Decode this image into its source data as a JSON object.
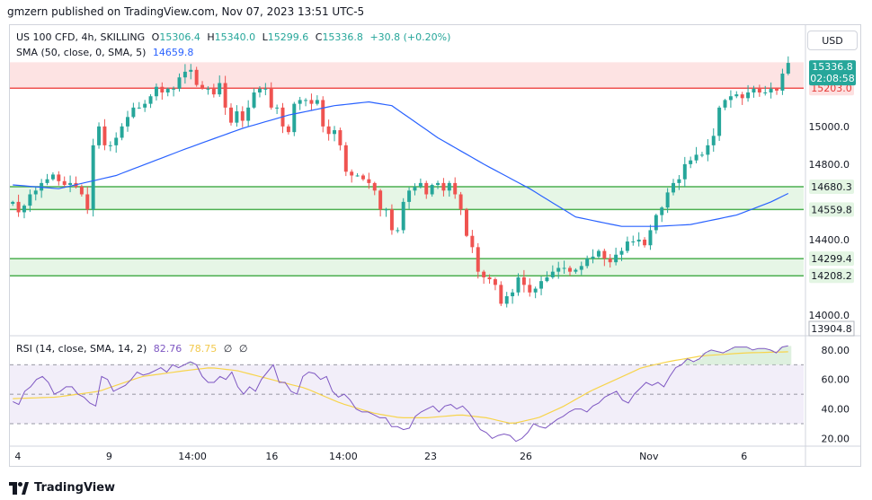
{
  "header": {
    "publisher_line": "gmzern published on TradingView.com, Nov 07, 2023 13:51 UTC-5"
  },
  "legend": {
    "symbol": "US 100 CFD, 4h, SKILLING",
    "open_label": "O",
    "open_value": "15306.4",
    "high_label": "H",
    "high_value": "15340.0",
    "low_label": "L",
    "low_value": "15299.6",
    "close_label": "C",
    "close_value": "15336.8",
    "change": "+30.8 (+0.20%)",
    "sma_label": "SMA (50, close, 0, SMA, 5)",
    "sma_value": "14659.8",
    "rsi_label": "RSI (14, close, SMA, 14, 2)",
    "rsi_value": "82.76",
    "rsi_ma_value": "78.75",
    "rsi_extra1": "∅",
    "rsi_extra2": "∅"
  },
  "currency_button": "USD",
  "footer": {
    "brand": "TradingView"
  },
  "colors": {
    "up": "#26a69a",
    "down": "#ef5350",
    "sma": "#2962ff",
    "rsi": "#7e57c2",
    "rsi_ma": "#f7d44c",
    "zone_red": "#fde0e0",
    "zone_green": "#e3f5e3",
    "line_red": "#f28b82",
    "line_green": "#66bb6a"
  },
  "chart_data": [
    {
      "type": "candlestick",
      "title": "US 100 CFD, 4h, SKILLING",
      "ylim": [
        13900,
        15380
      ],
      "y_ticks": [
        14000,
        14400,
        14800,
        15000
      ],
      "x_tick_labels": [
        "4",
        "9",
        "14:00",
        "16",
        "14:00",
        "23",
        "26",
        "Nov",
        "6"
      ],
      "levels": [
        {
          "value": 15203.0,
          "label": "15203.0",
          "color": "#ef5350"
        },
        {
          "value": 14680.3,
          "label": "14680.3",
          "color": "#4caf50"
        },
        {
          "value": 14559.8,
          "label": "14559.8",
          "color": "#4caf50"
        },
        {
          "value": 14299.4,
          "label": "14299.4",
          "color": "#4caf50"
        },
        {
          "value": 14208.2,
          "label": "14208.2",
          "color": "#4caf50"
        }
      ],
      "zones": [
        {
          "from": 15203.0,
          "to": 15340.0,
          "color": "red"
        },
        {
          "from": 14559.8,
          "to": 14680.3,
          "color": "green"
        },
        {
          "from": 14208.2,
          "to": 14299.4,
          "color": "green"
        }
      ],
      "price_label": {
        "value": 15336.8,
        "text": "15336.8",
        "countdown": "02:08:58"
      },
      "extra_axis_label": "13904.8",
      "sma_last": 14659.8,
      "sma_waypoints": [
        [
          0,
          14690
        ],
        [
          8,
          14670
        ],
        [
          18,
          14740
        ],
        [
          30,
          14880
        ],
        [
          40,
          14990
        ],
        [
          48,
          15060
        ],
        [
          56,
          15110
        ],
        [
          62,
          15130
        ],
        [
          66,
          15110
        ],
        [
          74,
          14940
        ],
        [
          82,
          14800
        ],
        [
          90,
          14670
        ],
        [
          98,
          14520
        ],
        [
          106,
          14470
        ],
        [
          112,
          14470
        ],
        [
          118,
          14480
        ],
        [
          126,
          14530
        ],
        [
          132,
          14600
        ],
        [
          136,
          14659.8
        ]
      ],
      "closes": [
        14600,
        14545,
        14580,
        14640,
        14660,
        14700,
        14720,
        14745,
        14710,
        14690,
        14700,
        14680,
        14640,
        14560,
        14900,
        15000,
        14900,
        14900,
        14940,
        15000,
        15050,
        15100,
        15100,
        15120,
        15160,
        15210,
        15180,
        15200,
        15200,
        15260,
        15290,
        15300,
        15220,
        15200,
        15200,
        15170,
        15230,
        15100,
        15020,
        15080,
        15030,
        15100,
        15180,
        15200,
        15200,
        15100,
        15100,
        15000,
        14970,
        15120,
        15140,
        15140,
        15120,
        15140,
        15000,
        14960,
        14980,
        14900,
        14760,
        14740,
        14740,
        14720,
        14700,
        14660,
        14560,
        14560,
        14450,
        14450,
        14600,
        14660,
        14680,
        14700,
        14640,
        14690,
        14700,
        14660,
        14700,
        14640,
        14560,
        14420,
        14360,
        14230,
        14200,
        14190,
        14160,
        14060,
        14100,
        14120,
        14200,
        14160,
        14120,
        14140,
        14180,
        14200,
        14230,
        14250,
        14250,
        14230,
        14240,
        14260,
        14300,
        14310,
        14340,
        14300,
        14280,
        14320,
        14340,
        14390,
        14390,
        14400,
        14370,
        14450,
        14530,
        14570,
        14650,
        14700,
        14720,
        14800,
        14820,
        14850,
        14850,
        14900,
        14950,
        15100,
        15140,
        15160,
        15170,
        15150,
        15180,
        15200,
        15180,
        15180,
        15200,
        15190,
        15280,
        15336.8
      ]
    },
    {
      "type": "line",
      "title": "RSI (14, close, SMA, 14, 2)",
      "ylim": [
        16,
        86
      ],
      "y_ticks": [
        20,
        40,
        60,
        80
      ],
      "bands": {
        "upper": 70,
        "middle": 50,
        "lower": 30
      },
      "rsi_last": 82.76,
      "rsi_ma_last": 78.75,
      "rsi_ma_waypoints": [
        [
          0,
          47
        ],
        [
          10,
          48
        ],
        [
          20,
          52
        ],
        [
          30,
          62
        ],
        [
          40,
          66
        ],
        [
          46,
          68
        ],
        [
          52,
          66
        ],
        [
          60,
          60
        ],
        [
          68,
          54
        ],
        [
          76,
          44
        ],
        [
          84,
          37
        ],
        [
          90,
          34
        ],
        [
          96,
          34
        ],
        [
          104,
          36
        ],
        [
          110,
          34
        ],
        [
          116,
          30
        ],
        [
          122,
          34
        ],
        [
          128,
          42
        ],
        [
          134,
          52
        ],
        [
          140,
          60
        ],
        [
          146,
          68
        ],
        [
          152,
          72
        ],
        [
          160,
          76
        ],
        [
          170,
          78
        ],
        [
          180,
          78.75
        ]
      ],
      "rsi_values": [
        45,
        43,
        52,
        55,
        60,
        62,
        58,
        50,
        52,
        55,
        55,
        50,
        48,
        44,
        42,
        62,
        60,
        52,
        54,
        56,
        60,
        65,
        63,
        64,
        66,
        68,
        65,
        70,
        68,
        70,
        72,
        70,
        62,
        58,
        58,
        62,
        60,
        65,
        55,
        50,
        55,
        52,
        60,
        65,
        70,
        58,
        58,
        52,
        50,
        62,
        65,
        64,
        60,
        62,
        52,
        48,
        50,
        46,
        40,
        38,
        38,
        36,
        34,
        34,
        28,
        28,
        26,
        27,
        35,
        38,
        40,
        42,
        38,
        42,
        43,
        40,
        42,
        38,
        32,
        26,
        24,
        20,
        22,
        23,
        22,
        18,
        20,
        24,
        30,
        28,
        27,
        30,
        33,
        35,
        38,
        40,
        40,
        38,
        42,
        44,
        48,
        50,
        52,
        46,
        44,
        50,
        54,
        58,
        56,
        58,
        55,
        62,
        68,
        70,
        74,
        72,
        74,
        78,
        80,
        79,
        78,
        80,
        82,
        82,
        82,
        80,
        81,
        81,
        80,
        78,
        82,
        82.76
      ]
    }
  ]
}
